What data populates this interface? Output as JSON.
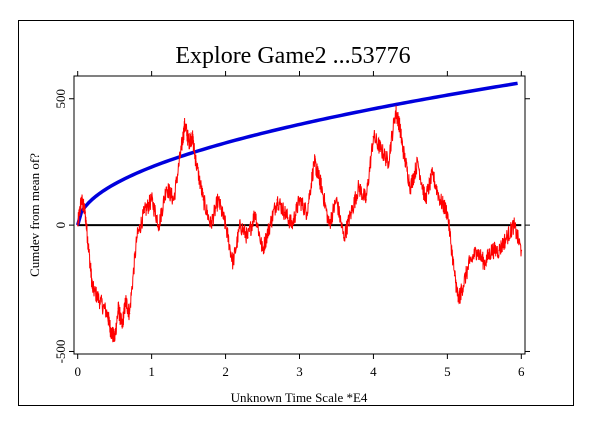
{
  "chart_data": {
    "type": "line",
    "title": "Explore Game2 ...53776",
    "xlabel": "Unknown Time Scale *E4",
    "ylabel": "Cumdev from mean of?",
    "xlim": [
      -0.05,
      6.05
    ],
    "ylim": [
      -510,
      590
    ],
    "x_ticks": [
      0,
      1,
      2,
      3,
      4,
      5,
      6
    ],
    "x_tick_labels": [
      "0",
      "1",
      "2",
      "3",
      "4",
      "5",
      "6"
    ],
    "y_ticks": [
      -500,
      0,
      500
    ],
    "y_tick_labels": [
      "-500",
      "0",
      "500"
    ],
    "grid": false,
    "legend": "none",
    "colors": {
      "cumdev": "#ff0000",
      "envelope": "#0000dd",
      "baseline": "#000000"
    },
    "series": [
      {
        "role": "cumdev",
        "x": [
          0.0,
          0.05,
          0.1,
          0.15,
          0.2,
          0.3,
          0.4,
          0.45,
          0.5,
          0.55,
          0.6,
          0.65,
          0.7,
          0.8,
          0.9,
          1.0,
          1.1,
          1.2,
          1.3,
          1.4,
          1.45,
          1.5,
          1.55,
          1.6,
          1.7,
          1.8,
          1.9,
          2.0,
          2.1,
          2.2,
          2.3,
          2.4,
          2.5,
          2.6,
          2.7,
          2.8,
          2.9,
          3.0,
          3.1,
          3.2,
          3.25,
          3.3,
          3.4,
          3.5,
          3.6,
          3.7,
          3.8,
          3.9,
          4.0,
          4.1,
          4.2,
          4.3,
          4.35,
          4.4,
          4.5,
          4.6,
          4.7,
          4.8,
          4.9,
          5.0,
          5.1,
          5.15,
          5.2,
          5.3,
          5.4,
          5.5,
          5.6,
          5.7,
          5.8,
          5.9,
          6.0
        ],
        "y": [
          0,
          100,
          50,
          -100,
          -250,
          -300,
          -350,
          -420,
          -450,
          -330,
          -400,
          -300,
          -350,
          -50,
          50,
          100,
          0,
          150,
          100,
          300,
          400,
          330,
          350,
          250,
          100,
          0,
          100,
          0,
          -150,
          0,
          -50,
          50,
          -100,
          0,
          100,
          50,
          0,
          100,
          50,
          250,
          200,
          150,
          0,
          100,
          -50,
          50,
          150,
          100,
          350,
          300,
          250,
          450,
          400,
          300,
          150,
          250,
          100,
          200,
          100,
          50,
          -200,
          -300,
          -250,
          -150,
          -100,
          -150,
          -100,
          -100,
          -50,
          0,
          -100
        ]
      }
    ],
    "envelope": {
      "curve": "y = 230 * sqrt(x)",
      "x_range": [
        0,
        5.95
      ]
    },
    "reference_line": {
      "y": 0,
      "x_range": [
        0,
        6
      ]
    }
  }
}
